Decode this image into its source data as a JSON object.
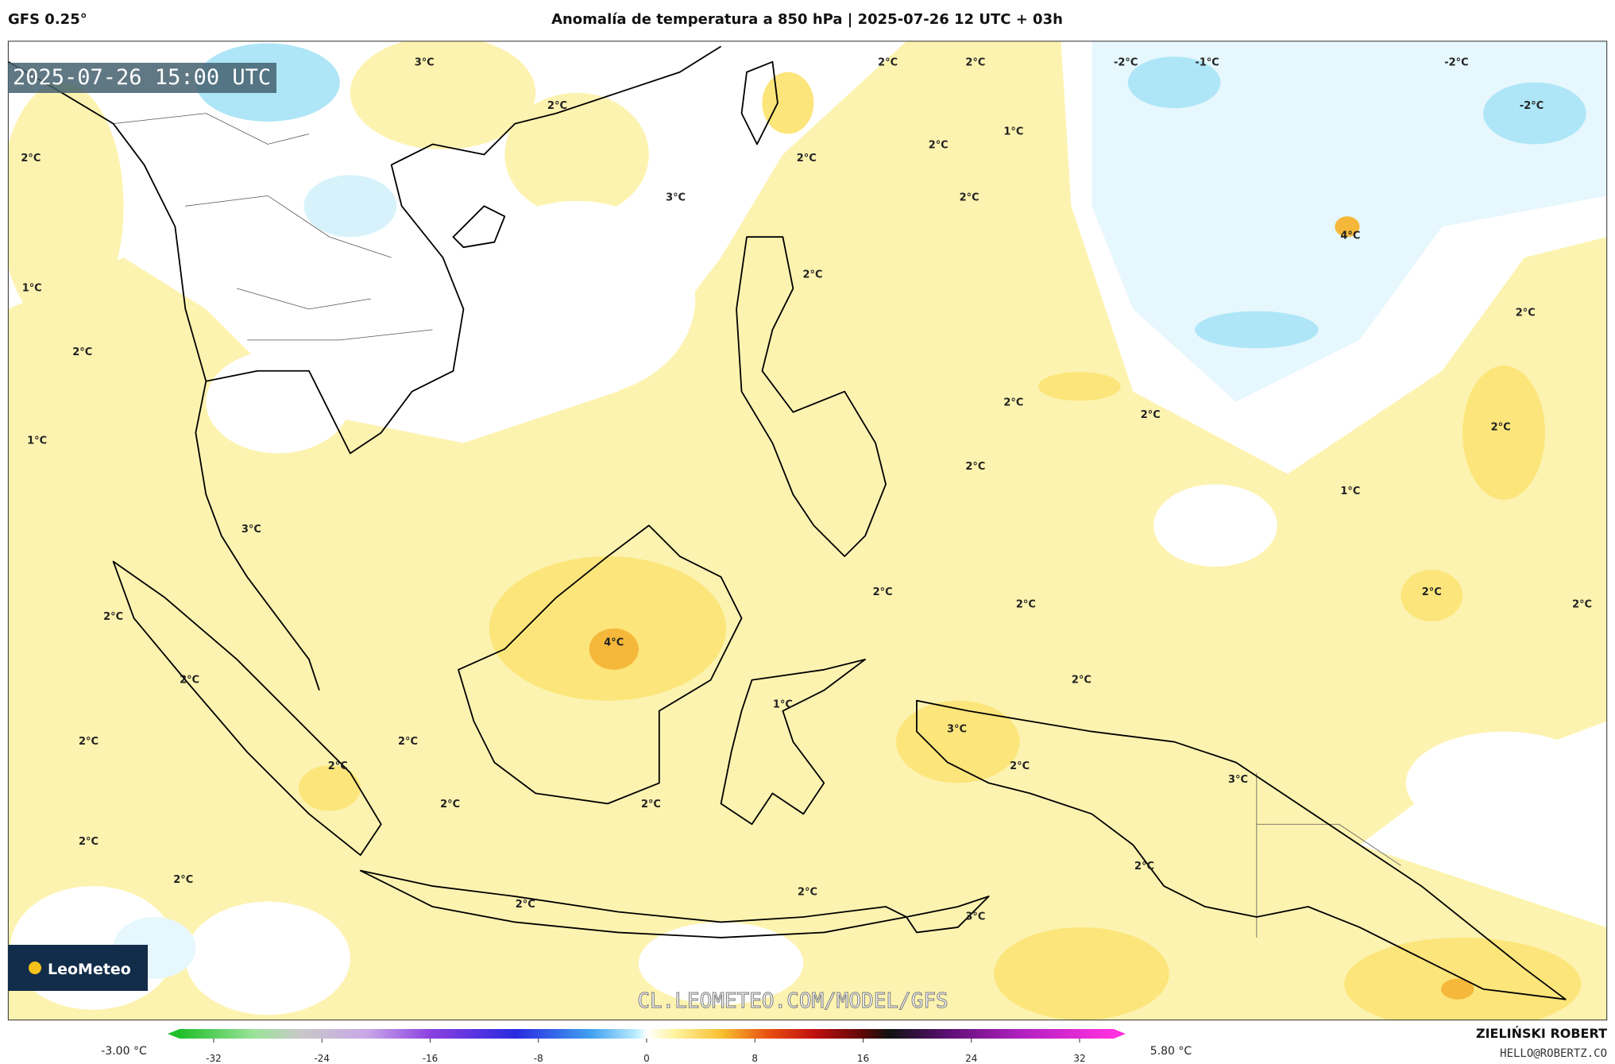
{
  "header": {
    "model": "GFS 0.25°",
    "title": "Anomalía de temperatura a 850 hPa | 2025-07-26 12 UTC + 03h"
  },
  "map": {
    "valid_time": "2025-07-26 15:00 UTC",
    "watermark": "CL.LEOMETEO.COM/MODEL/GFS",
    "logo": "LeoMeteo",
    "contour_labels": [
      "3°C",
      "2°C",
      "2°C",
      "2°C",
      "-2°C",
      "-1°C",
      "-2°C",
      "-2°C",
      "1°C",
      "2°C",
      "2°C",
      "2°C",
      "3°C",
      "2°C",
      "4°C",
      "2°C",
      "1°C",
      "2°C",
      "2°C",
      "2°C",
      "2°C",
      "2°C",
      "1°C",
      "2°C",
      "1°C",
      "3°C",
      "2°C",
      "2°C",
      "2°C",
      "2°C",
      "2°C",
      "4°C",
      "2°C",
      "2°C",
      "1°C",
      "3°C",
      "2°C",
      "2°C",
      "2°C",
      "2°C",
      "3°C",
      "2°C",
      "2°C",
      "2°C",
      "2°C",
      "2°C",
      "2°C",
      "3°C",
      "2°C"
    ]
  },
  "colorbar": {
    "min_label": "-3.00 °C",
    "max_label": "5.80 °C",
    "ticks": [
      -32,
      -24,
      -16,
      -8,
      0,
      8,
      16,
      24,
      32
    ]
  },
  "footer": {
    "author": "ZIELIŃSKI ROBERT",
    "email": "HELLO@ROBERTZ.CO"
  }
}
